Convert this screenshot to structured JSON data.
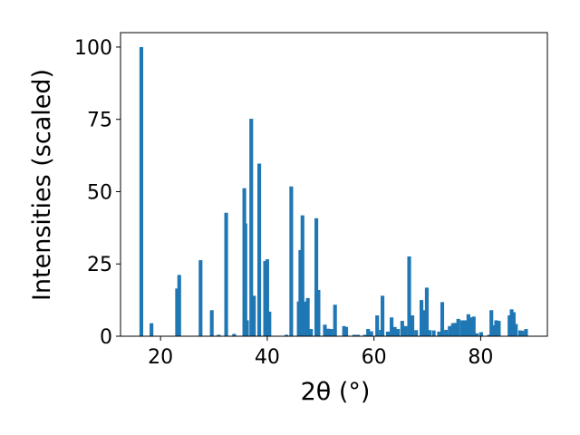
{
  "chart_data": {
    "type": "bar",
    "xlabel": "2θ (°)",
    "ylabel": "Intensities (scaled)",
    "xlim": [
      12.5,
      92.5
    ],
    "ylim": [
      0,
      105
    ],
    "xticks": [
      20,
      40,
      60,
      80
    ],
    "yticks": [
      0,
      25,
      50,
      75,
      100
    ],
    "grid": false,
    "bar_width": 0.7,
    "color": "#1f77b4",
    "x": [
      16.4,
      18.3,
      23.1,
      23.5,
      27.5,
      29.6,
      30.9,
      32.3,
      33.8,
      35.7,
      35.9,
      36.2,
      37.0,
      37.5,
      38.5,
      39.6,
      40.0,
      40.4,
      43.6,
      44.5,
      45.9,
      46.2,
      46.6,
      47.0,
      47.6,
      48.2,
      49.2,
      49.6,
      50.8,
      51.4,
      52.0,
      52.7,
      54.4,
      54.8,
      56.3,
      57.0,
      58.3,
      58.9,
      59.5,
      60.6,
      61.3,
      61.6,
      62.6,
      63.3,
      63.9,
      64.5,
      65.3,
      65.9,
      66.6,
      67.2,
      67.9,
      68.9,
      69.4,
      69.9,
      70.4,
      71.2,
      72.2,
      72.8,
      73.5,
      74.2,
      74.8,
      75.2,
      75.8,
      76.5,
      77.1,
      77.7,
      78.1,
      78.7,
      79.3,
      80.1,
      81.6,
      82.0,
      82.4,
      82.9,
      83.4,
      85.4,
      85.8,
      86.2,
      86.6,
      87.4,
      87.8,
      88.5
    ],
    "values": [
      100,
      4.5,
      16.5,
      21.2,
      26.3,
      9.0,
      0.5,
      42.7,
      0.8,
      51.2,
      39.0,
      5.5,
      75.2,
      14.0,
      59.7,
      26.0,
      26.6,
      8.5,
      0.5,
      51.8,
      12.0,
      29.8,
      41.8,
      12.0,
      13.2,
      2.5,
      40.8,
      16.0,
      4.0,
      2.6,
      2.5,
      10.9,
      3.5,
      3.2,
      0.5,
      0.5,
      0.5,
      2.5,
      1.7,
      7.2,
      2.2,
      14.0,
      1.6,
      6.5,
      3.2,
      2.5,
      5.3,
      3.5,
      27.6,
      7.2,
      2.1,
      12.5,
      9.0,
      16.8,
      2.1,
      2.0,
      1.6,
      11.8,
      2.2,
      3.5,
      4.5,
      4.6,
      6.0,
      5.5,
      5.5,
      7.6,
      6.5,
      6.8,
      1.0,
      1.4,
      0.5,
      9.0,
      3.8,
      5.5,
      5.3,
      7.2,
      9.3,
      8.3,
      4.2,
      2.0,
      1.9,
      2.5
    ]
  }
}
